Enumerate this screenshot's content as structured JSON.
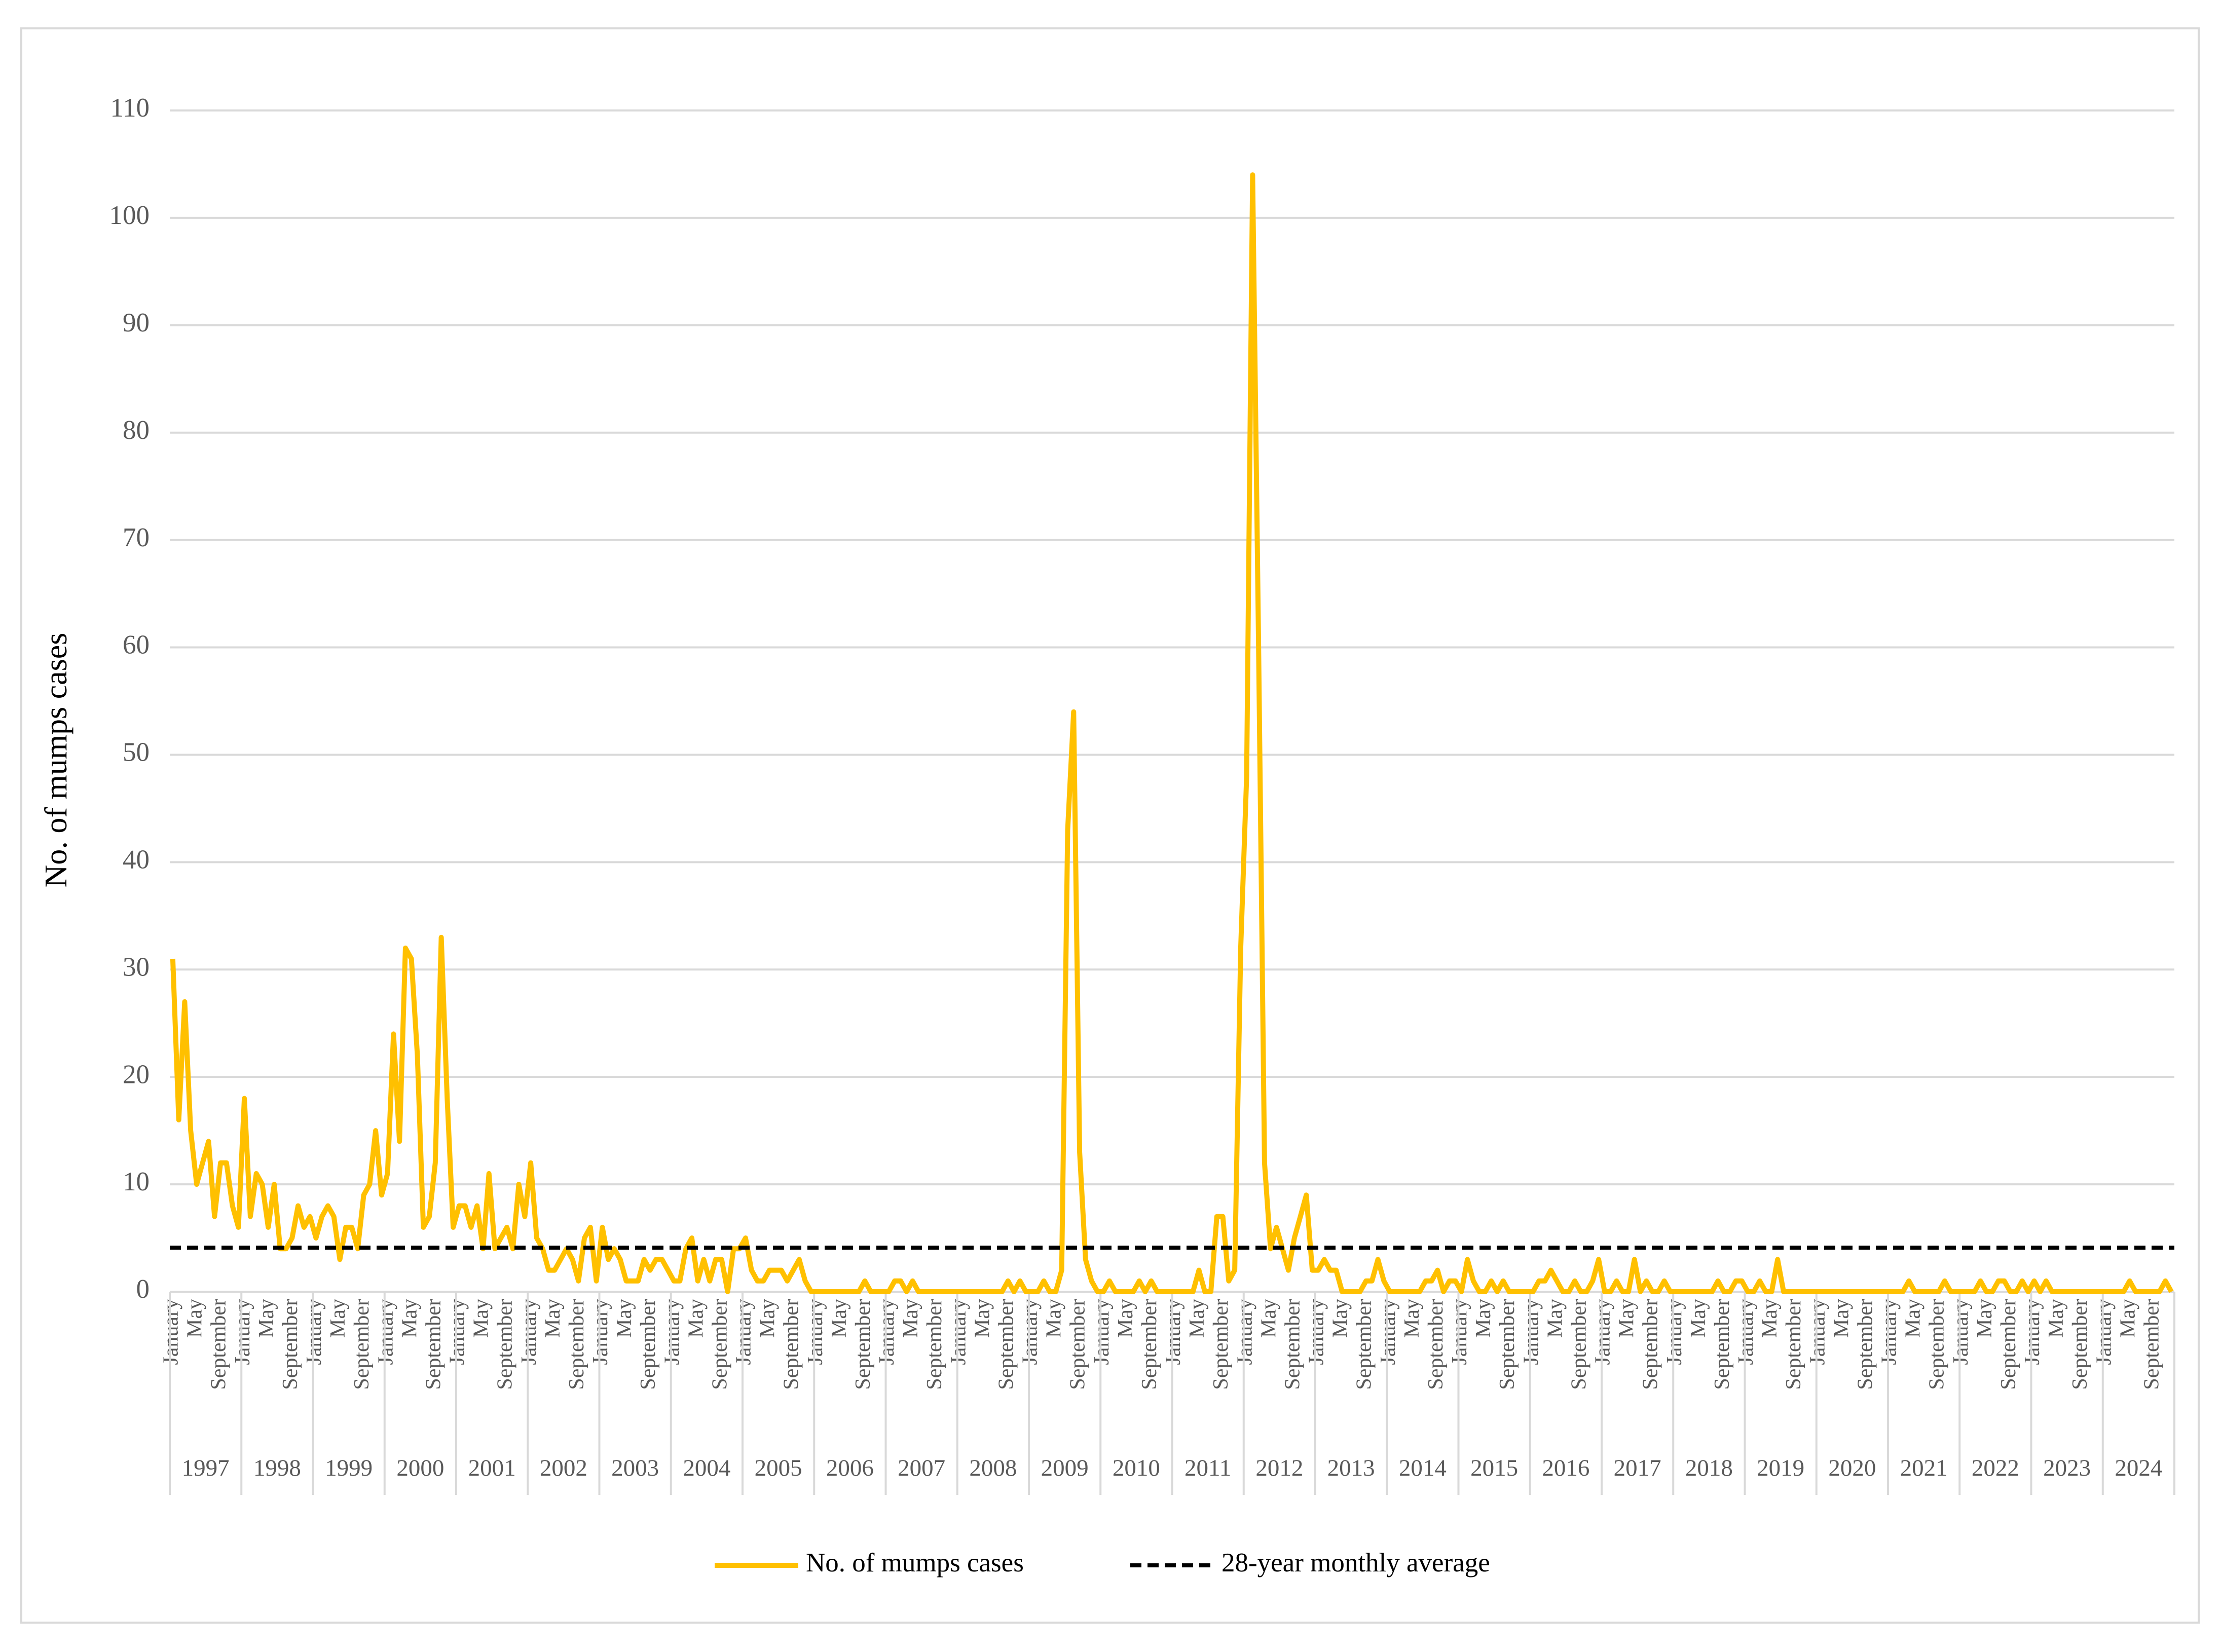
{
  "chart_data": {
    "type": "line",
    "y_label": "No. of mumps cases",
    "ylim": [
      0,
      110
    ],
    "yticks": [
      0,
      10,
      20,
      30,
      40,
      50,
      60,
      70,
      80,
      90,
      100,
      110
    ],
    "grid": true,
    "legend": "bottom",
    "categories": [
      "January",
      null,
      null,
      null,
      "May",
      null,
      null,
      null,
      "September",
      null,
      null,
      null,
      "January",
      null,
      null,
      null,
      "May",
      null,
      null,
      null,
      "September",
      null,
      null,
      null,
      "January",
      null,
      null,
      null,
      "May",
      null,
      null,
      null,
      "September",
      null,
      null,
      null,
      "January",
      null,
      null,
      null,
      "May",
      null,
      null,
      null,
      "September",
      null,
      null,
      null,
      "January",
      null,
      null,
      null,
      "May",
      null,
      null,
      null,
      "September",
      null,
      null,
      null,
      "January",
      null,
      null,
      null,
      "May",
      null,
      null,
      null,
      "September",
      null,
      null,
      null,
      "January",
      null,
      null,
      null,
      "May",
      null,
      null,
      null,
      "September",
      null,
      null,
      null,
      "January",
      null,
      null,
      null,
      "May",
      null,
      null,
      null,
      "September",
      null,
      null,
      null,
      "January",
      null,
      null,
      null,
      "May",
      null,
      null,
      null,
      "September",
      null,
      null,
      null,
      "January",
      null,
      null,
      null,
      "May",
      null,
      null,
      null,
      "September",
      null,
      null,
      null,
      "January",
      null,
      null,
      null,
      "May",
      null,
      null,
      null,
      "September",
      null,
      null,
      null,
      "January",
      null,
      null,
      null,
      "May",
      null,
      null,
      null,
      "September",
      null,
      null,
      null,
      "January",
      null,
      null,
      null,
      "May",
      null,
      null,
      null,
      "September",
      null,
      null,
      null,
      "January",
      null,
      null,
      null,
      "May",
      null,
      null,
      null,
      "September",
      null,
      null,
      null,
      "January",
      null,
      null,
      null,
      "May",
      null,
      null,
      null,
      "September",
      null,
      null,
      null,
      "January",
      null,
      null,
      null,
      "May",
      null,
      null,
      null,
      "September",
      null,
      null,
      null,
      "January",
      null,
      null,
      null,
      "May",
      null,
      null,
      null,
      "September",
      null,
      null,
      null,
      "January",
      null,
      null,
      null,
      "May",
      null,
      null,
      null,
      "September",
      null,
      null,
      null,
      "January",
      null,
      null,
      null,
      "May",
      null,
      null,
      null,
      "September",
      null,
      null,
      null,
      "January",
      null,
      null,
      null,
      "May",
      null,
      null,
      null,
      "September",
      null,
      null,
      null,
      "January",
      null,
      null,
      null,
      "May",
      null,
      null,
      null,
      "September",
      null,
      null,
      null,
      "January",
      null,
      null,
      null,
      "May",
      null,
      null,
      null,
      "September",
      null,
      null,
      null,
      "January",
      null,
      null,
      null,
      "May",
      null,
      null,
      null,
      "September",
      null,
      null,
      null,
      "January",
      null,
      null,
      null,
      "May",
      null,
      null,
      null,
      "September",
      null,
      null,
      null,
      "January",
      null,
      null,
      null,
      "May",
      null,
      null,
      null,
      "September",
      null,
      null,
      null,
      "January",
      null,
      null,
      null,
      "May",
      null,
      null,
      null,
      "September",
      null,
      null,
      null,
      "January",
      null,
      null,
      null,
      "May",
      null,
      null,
      null,
      "September",
      null,
      null,
      null,
      "January",
      null,
      null,
      null,
      "May",
      null,
      null,
      null,
      "September",
      null,
      null,
      null
    ],
    "year_labels": [
      "1997",
      "1998",
      "1999",
      "2000",
      "2001",
      "2002",
      "2003",
      "2004",
      "2005",
      "2006",
      "2007",
      "2008",
      "2009",
      "2010",
      "2011",
      "2012",
      "2013",
      "2014",
      "2015",
      "2016",
      "2017",
      "2018",
      "2019",
      "2020",
      "2021",
      "2022",
      "2023",
      "2024"
    ],
    "series": [
      {
        "name": "No. of mumps cases",
        "color": "#ffc000",
        "values": [
          31,
          16,
          27,
          15,
          10,
          12,
          14,
          7,
          12,
          12,
          8,
          6,
          18,
          7,
          11,
          10,
          6,
          10,
          4,
          4,
          5,
          8,
          6,
          7,
          5,
          7,
          8,
          7,
          3,
          6,
          6,
          4,
          9,
          10,
          15,
          9,
          11,
          24,
          14,
          32,
          31,
          22,
          6,
          7,
          12,
          33,
          18,
          6,
          8,
          8,
          6,
          8,
          4,
          11,
          4,
          5,
          6,
          4,
          10,
          7,
          12,
          5,
          4,
          2,
          2,
          3,
          4,
          3,
          1,
          5,
          6,
          1,
          6,
          3,
          4,
          3,
          1,
          1,
          1,
          3,
          2,
          3,
          3,
          2,
          1,
          1,
          4,
          5,
          1,
          3,
          1,
          3,
          3,
          0,
          4,
          4,
          5,
          2,
          1,
          1,
          2,
          2,
          2,
          1,
          2,
          3,
          1,
          0,
          0,
          0,
          0,
          0,
          0,
          0,
          0,
          0,
          1,
          0,
          0,
          0,
          0,
          1,
          1,
          0,
          1,
          0,
          0,
          0,
          0,
          0,
          0,
          0,
          0,
          0,
          0,
          0,
          0,
          0,
          0,
          0,
          1,
          0,
          1,
          0,
          0,
          0,
          1,
          0,
          0,
          2,
          43,
          54,
          13,
          3,
          1,
          0,
          0,
          1,
          0,
          0,
          0,
          0,
          1,
          0,
          1,
          0,
          0,
          0,
          0,
          0,
          0,
          0,
          2,
          0,
          0,
          7,
          7,
          1,
          2,
          32,
          48,
          104,
          60,
          12,
          4,
          6,
          4,
          2,
          5,
          7,
          9,
          2,
          2,
          3,
          2,
          2,
          0,
          0,
          0,
          0,
          1,
          1,
          3,
          1,
          0,
          0,
          0,
          0,
          0,
          0,
          1,
          1,
          2,
          0,
          1,
          1,
          0,
          3,
          1,
          0,
          0,
          1,
          0,
          1,
          0,
          0,
          0,
          0,
          0,
          1,
          1,
          2,
          1,
          0,
          0,
          1,
          0,
          0,
          1,
          3,
          0,
          0,
          1,
          0,
          0,
          3,
          0,
          1,
          0,
          0,
          1,
          0,
          0,
          0,
          0,
          0,
          0,
          0,
          0,
          1,
          0,
          0,
          1,
          1,
          0,
          0,
          1,
          0,
          0,
          3,
          0,
          0,
          0,
          0,
          0,
          0,
          0,
          0,
          0,
          0,
          0,
          0,
          0,
          0,
          0,
          0,
          0,
          0,
          0,
          0,
          0,
          1,
          0,
          0,
          0,
          0,
          0,
          1,
          0,
          0,
          0,
          0,
          0,
          1,
          0,
          0,
          1,
          1,
          0,
          0,
          1,
          0,
          1,
          0,
          1,
          0,
          0,
          0,
          0,
          0,
          0,
          0,
          0,
          0,
          0,
          0,
          0,
          0,
          1,
          0,
          0,
          0,
          0,
          0,
          1,
          0
        ]
      }
    ],
    "reference_line": {
      "name": "28-year monthly average",
      "value": 4.1,
      "color": "#000000"
    }
  }
}
